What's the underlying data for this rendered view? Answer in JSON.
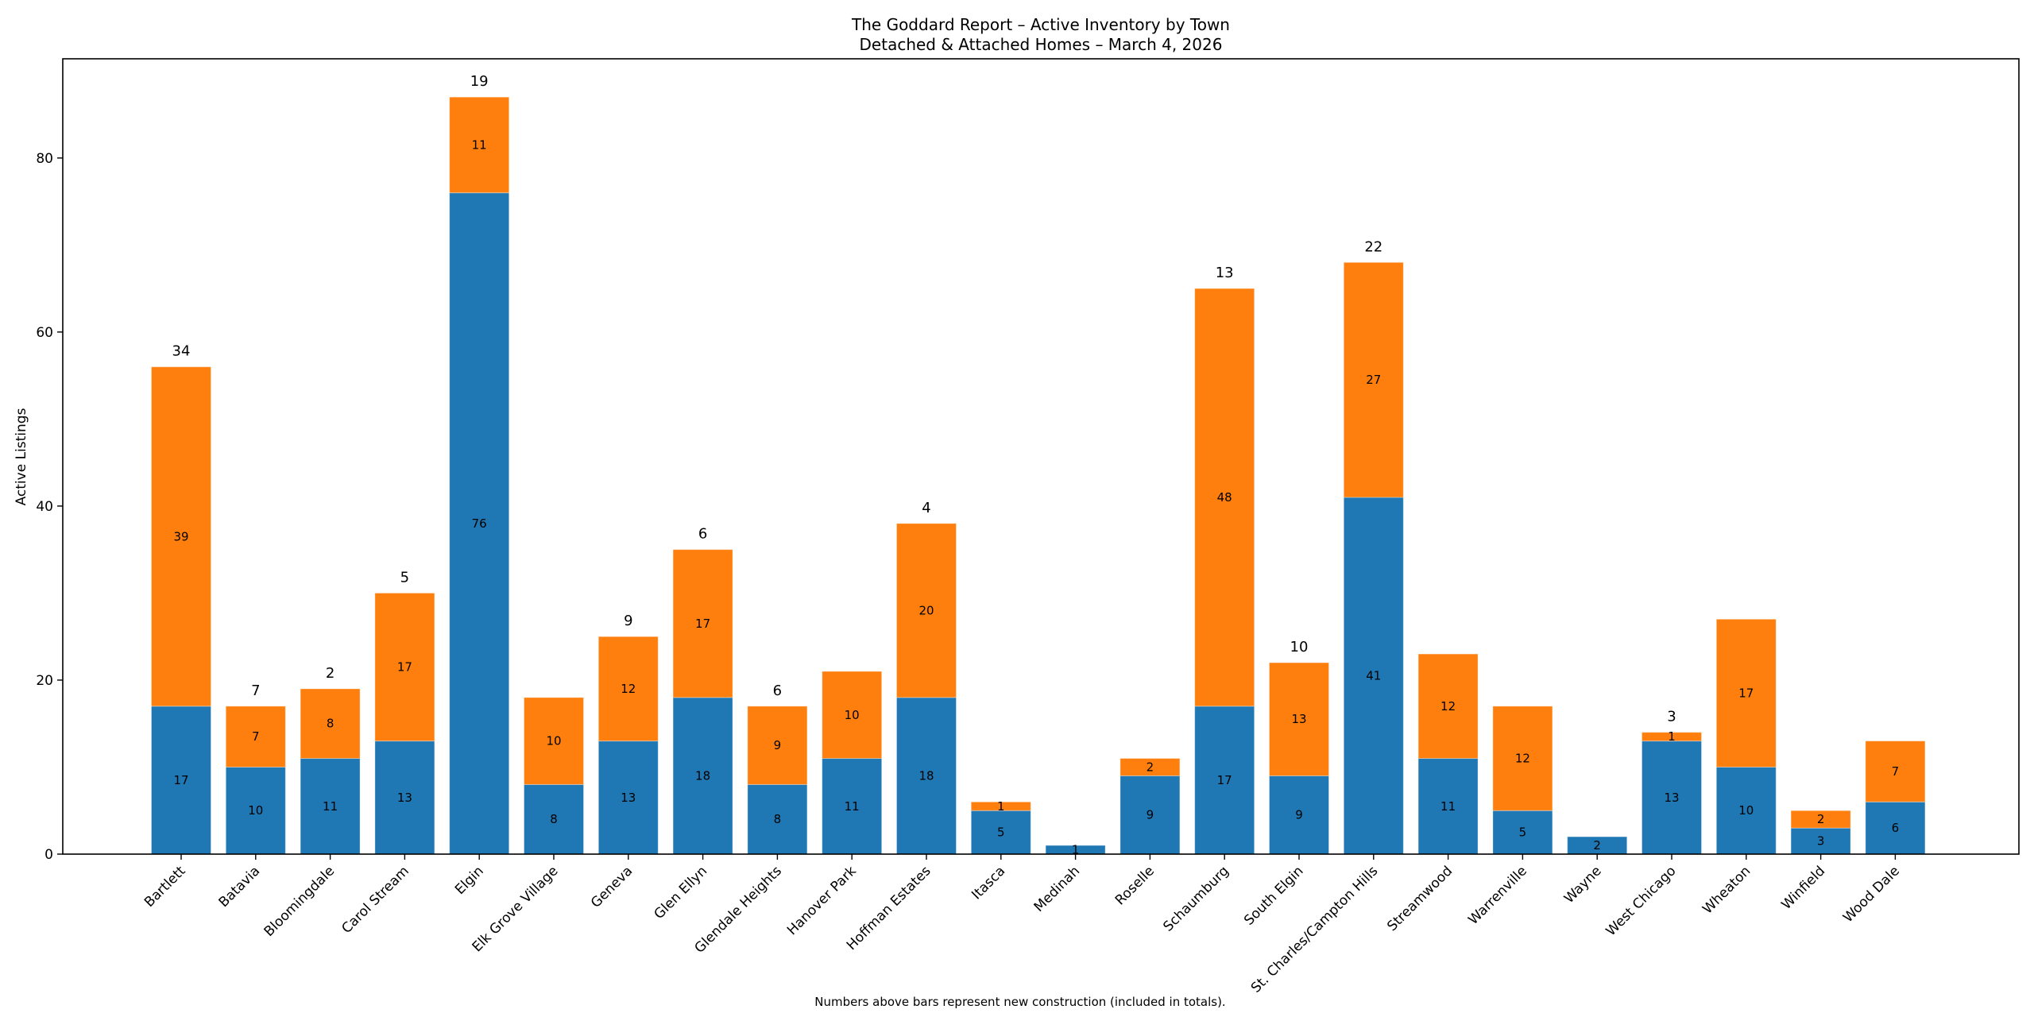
{
  "chart_data": {
    "type": "bar",
    "stacked": true,
    "title": "The Goddard Report – Active Inventory by Town",
    "subtitle": "Detached & Attached Homes – March 4, 2026",
    "xlabel": "",
    "ylabel": "Active Listings",
    "ylim": [
      0,
      91.4
    ],
    "yticks": [
      0,
      20,
      40,
      60,
      80
    ],
    "grid": false,
    "legend": "none",
    "footnote": "Numbers above bars represent new construction (included in totals).",
    "categories": [
      "Bartlett",
      "Batavia",
      "Bloomingdale",
      "Carol Stream",
      "Elgin",
      "Elk Grove Village",
      "Geneva",
      "Glen Ellyn",
      "Glendale Heights",
      "Hanover Park",
      "Hoffman Estates",
      "Itasca",
      "Medinah",
      "Roselle",
      "Schaumburg",
      "South Elgin",
      "St. Charles/Campton Hills",
      "Streamwood",
      "Warrenville",
      "Wayne",
      "West Chicago",
      "Wheaton",
      "Winfield",
      "Wood Dale"
    ],
    "series": [
      {
        "name": "Detached",
        "color": "#1f77b4",
        "values": [
          17,
          10,
          11,
          13,
          76,
          8,
          13,
          18,
          8,
          11,
          18,
          5,
          1,
          9,
          17,
          9,
          41,
          11,
          5,
          2,
          13,
          10,
          3,
          6
        ]
      },
      {
        "name": "Attached",
        "color": "#ff7f0e",
        "values": [
          39,
          7,
          8,
          17,
          11,
          10,
          12,
          17,
          9,
          10,
          20,
          1,
          0,
          2,
          48,
          13,
          27,
          12,
          12,
          0,
          1,
          17,
          2,
          7
        ]
      }
    ],
    "new_construction": [
      34,
      7,
      2,
      5,
      19,
      null,
      9,
      6,
      6,
      null,
      4,
      null,
      null,
      null,
      13,
      10,
      22,
      null,
      null,
      null,
      3,
      null,
      null,
      null
    ]
  }
}
